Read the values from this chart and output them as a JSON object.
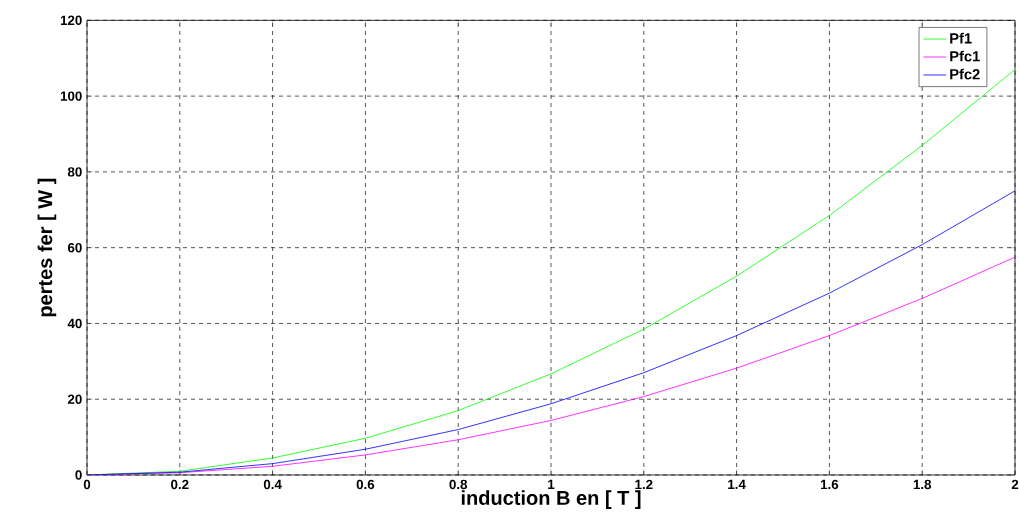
{
  "chart_data": {
    "type": "line",
    "xlabel": "induction B en [ T ]",
    "ylabel": "pertes fer [ W ]",
    "x": [
      0,
      0.2,
      0.4,
      0.6,
      0.8,
      1.0,
      1.2,
      1.4,
      1.6,
      1.8,
      2.0
    ],
    "series": [
      {
        "name": "Pf1",
        "color": "#00ff00",
        "values": [
          0,
          1,
          4.5,
          9.7,
          17,
          26.7,
          38.5,
          52.5,
          68.5,
          87,
          107
        ]
      },
      {
        "name": "Pfc1",
        "color": "#ff00ff",
        "values": [
          0,
          0.6,
          2.3,
          5.3,
          9.3,
          14.4,
          20.7,
          28.2,
          36.8,
          46.6,
          57.5
        ]
      },
      {
        "name": "Pfc2",
        "color": "#0000ff",
        "values": [
          0,
          0.75,
          3,
          6.8,
          12,
          18.8,
          27,
          36.8,
          48,
          60.8,
          75
        ]
      }
    ],
    "xlim": [
      0,
      2
    ],
    "ylim": [
      0,
      120
    ],
    "xticks": [
      0,
      0.2,
      0.4,
      0.6,
      0.8,
      1,
      1.2,
      1.4,
      1.6,
      1.8,
      2
    ],
    "yticks": [
      0,
      20,
      40,
      60,
      80,
      100,
      120
    ],
    "grid": true,
    "legend": "top right",
    "marker": "none",
    "line_style": "solid"
  }
}
